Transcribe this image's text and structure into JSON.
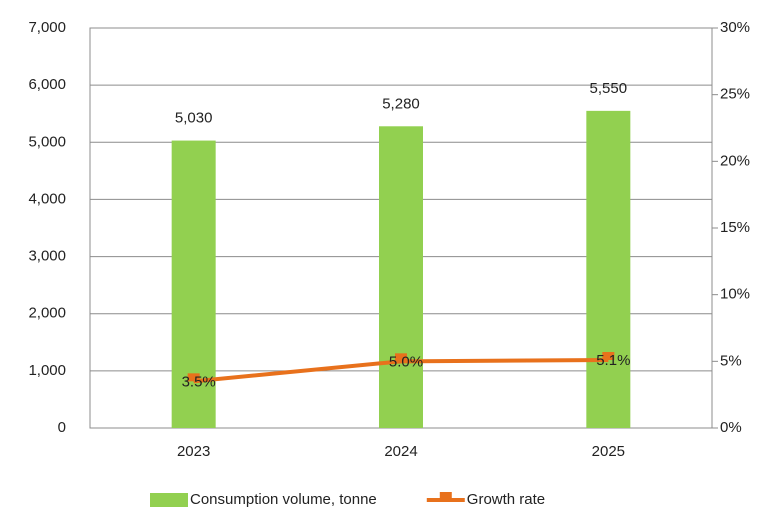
{
  "chart_data": {
    "type": "bar",
    "categories": [
      "2023",
      "2024",
      "2025"
    ],
    "series": [
      {
        "name": "Consumption volume, tonne",
        "type": "bar",
        "color": "#92d050",
        "values": [
          5030,
          5280,
          5550
        ],
        "value_labels": [
          "5,030",
          "5,280",
          "5,550"
        ]
      },
      {
        "name": "Growth rate",
        "type": "line",
        "axis": "y2",
        "color": "#e8711c",
        "values": [
          3.5,
          5.0,
          5.1
        ],
        "value_labels": [
          "3.5%",
          "5.0%",
          "5.1%"
        ]
      }
    ],
    "ylim": [
      0,
      7000
    ],
    "yticks": [
      0,
      {
        "value": 1000,
        "label": "1,000"
      },
      {
        "value": 2000,
        "label": "2,000"
      },
      {
        "value": 3000,
        "label": "3,000"
      },
      {
        "value": 4000,
        "label": "4,000"
      },
      {
        "value": 5000,
        "label": "5,000"
      },
      {
        "value": 6000,
        "label": "6,000"
      },
      {
        "value": 7000,
        "label": "7,000"
      }
    ],
    "y2lim": [
      0,
      30
    ],
    "y2ticks": [
      {
        "value": 0,
        "label": "0%"
      },
      {
        "value": 5,
        "label": "5%"
      },
      {
        "value": 10,
        "label": "10%"
      },
      {
        "value": 15,
        "label": "15%"
      },
      {
        "value": 20,
        "label": "20%"
      },
      {
        "value": 25,
        "label": "25%"
      },
      {
        "value": 30,
        "label": "30%"
      }
    ],
    "grid": true,
    "legend": "bottom"
  }
}
